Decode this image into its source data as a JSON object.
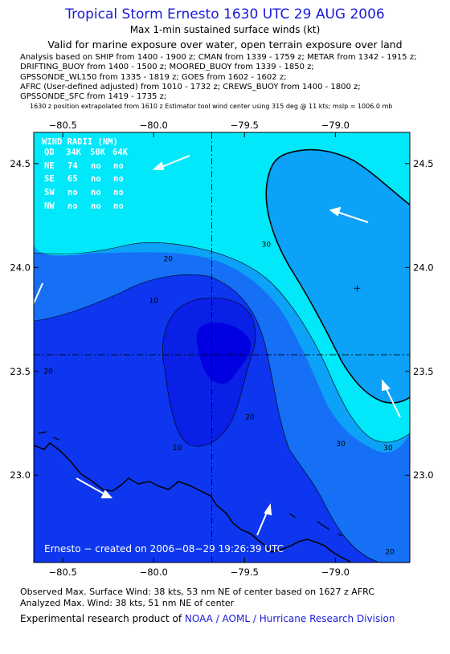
{
  "header": {
    "title": "Tropical Storm Ernesto 1630 UTC 29 AUG 2006",
    "subtitle": "Max 1-min sustained surface winds (kt)",
    "validity": "Valid for marine exposure over water, open terrain exposure over land"
  },
  "analysis_lines": [
    "Analysis based on  SHIP from 1400 - 1900 z;  CMAN from 1339 - 1759 z;  METAR from 1342 - 1915 z;",
    "DRIFTING_BUOY from 1400 - 1500 z;  MOORED_BUOY from 1339 - 1850 z;",
    "GPSSONDE_WL150 from 1335 - 1819 z;  GOES from 1602 - 1602 z;",
    "AFRC (User-defined adjusted) from 1010 - 1732 z;  CREWS_BUOY from 1400 - 1800 z;",
    "GPSSONDE_SFC from 1419 - 1735 z;"
  ],
  "analysis_note": "1630 z position extrapolated from 1610 z Estimator tool wind center using 315 deg @ 11 kts; mslp = 1006.0 mb",
  "chart_data": {
    "type": "contour",
    "x_ticks": [
      -80.5,
      -80.0,
      -79.5,
      -79.0
    ],
    "x_tick_labels": [
      "−80.5",
      "−80.0",
      "−79.5",
      "−79.0"
    ],
    "y_ticks": [
      24.5,
      24.0,
      23.5,
      23.0
    ],
    "y_tick_labels": [
      "24.5",
      "24.0",
      "23.5",
      "23.0"
    ],
    "xlim": [
      -80.66,
      -78.59
    ],
    "ylim": [
      22.58,
      24.65
    ],
    "storm_center": {
      "lon": -79.68,
      "lat": 23.58
    },
    "max_wind_marker": {
      "lon": -78.88,
      "lat": 23.9
    },
    "contour_levels": [
      10,
      20,
      30
    ],
    "contour_labels": [
      {
        "text": "10",
        "lon": -80.0,
        "lat": 23.83
      },
      {
        "text": "10",
        "lon": -79.87,
        "lat": 23.12
      },
      {
        "text": "20",
        "lon": -79.92,
        "lat": 24.03
      },
      {
        "text": "20",
        "lon": -80.58,
        "lat": 23.49
      },
      {
        "text": "20",
        "lon": -79.47,
        "lat": 23.27
      },
      {
        "text": "20",
        "lon": -78.7,
        "lat": 22.62
      },
      {
        "text": "30",
        "lon": -79.38,
        "lat": 24.1
      },
      {
        "text": "30",
        "lon": -78.97,
        "lat": 23.14
      },
      {
        "text": "30",
        "lon": -78.71,
        "lat": 23.12
      }
    ],
    "wind_radii": {
      "header": [
        "QD",
        "34K",
        "50K",
        "64K"
      ],
      "title": "WIND RADII (NM)",
      "rows": [
        [
          "NE",
          "74",
          "no",
          "no"
        ],
        [
          "SE",
          "65",
          "no",
          "no"
        ],
        [
          "SW",
          "no",
          "no",
          "no"
        ],
        [
          "NW",
          "no",
          "no",
          "no"
        ]
      ]
    },
    "credit": "Ernesto − created on 2006−08−29 19:26:39 UTC",
    "colors": {
      "c0": "#0000e0",
      "c10": "#0d36ee",
      "c20": "#1670f6",
      "c30": "#0ba2f7",
      "c40": "#00e8fa"
    }
  },
  "footer": {
    "observed": "Observed Max. Surface Wind: 38 kts, 53 nm NE of center based on 1627 z AFRC",
    "analyzed": "Analyzed Max. Wind: 38 kts, 51 nm NE of center",
    "experimental_prefix": "Experimental research product of ",
    "experimental_link": "NOAA / AOML / Hurricane Research Division"
  }
}
